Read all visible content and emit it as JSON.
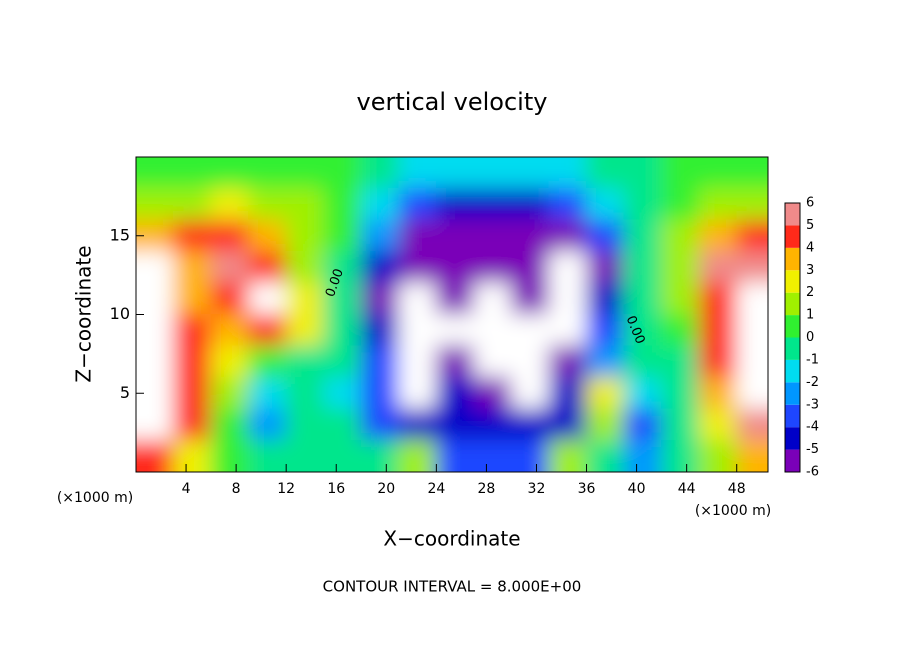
{
  "chart_data": {
    "type": "heatmap",
    "title": "vertical velocity",
    "xlabel": "X−coordinate",
    "ylabel": "Z−coordinate",
    "x_unit": "(×1000 m)",
    "footer": "CONTOUR INTERVAL = 8.000E+00",
    "annotations": [
      "0.00",
      "0.00"
    ],
    "xlim": [
      0,
      50.5
    ],
    "ylim": [
      0,
      20
    ],
    "xticks": [
      4,
      8,
      12,
      16,
      20,
      24,
      28,
      32,
      36,
      40,
      44,
      48
    ],
    "yticks": [
      5,
      10,
      15
    ],
    "x": [
      1.5,
      4.5,
      7.5,
      10.5,
      13.5,
      16.5,
      19.5,
      22.5,
      25.5,
      28.5,
      31.5,
      34.5,
      37.5,
      40.5,
      43.5,
      46.5,
      49.5
    ],
    "y": [
      19,
      17,
      15,
      13,
      11,
      9,
      7,
      5,
      3,
      1
    ],
    "z": [
      [
        1,
        1,
        1,
        1,
        1,
        0.5,
        0,
        -1,
        -1.5,
        -1.5,
        -1,
        -1,
        -0.5,
        0,
        0.5,
        1,
        1
      ],
      [
        2,
        2,
        3,
        2,
        1.5,
        0.5,
        -1,
        -3,
        -4,
        -4.5,
        -4,
        -3,
        -1.5,
        0,
        1,
        2,
        2
      ],
      [
        4,
        5,
        5,
        4,
        2,
        0.5,
        -2,
        -5,
        -5,
        -5,
        -5,
        -5,
        -3,
        0,
        2,
        4,
        5
      ],
      [
        8,
        4,
        6,
        5,
        2,
        0,
        -4,
        -6,
        -6,
        -5,
        -5,
        -8,
        -5,
        0,
        2,
        6,
        6
      ],
      [
        8,
        4,
        5,
        8,
        3,
        0,
        -5,
        -8,
        -6,
        -8,
        -6,
        -8,
        -4,
        -0.5,
        2,
        5,
        8
      ],
      [
        8,
        5,
        4,
        5,
        3,
        0,
        -4,
        -8,
        -7,
        -8,
        -8,
        -8,
        -3,
        0,
        1,
        5,
        8
      ],
      [
        8,
        5,
        3,
        1,
        0,
        -0.5,
        -3,
        -8,
        -5,
        -8,
        -8,
        -5,
        -2,
        0,
        0,
        5,
        8
      ],
      [
        8,
        5,
        2,
        -1,
        0,
        -1,
        -3,
        -8,
        -4,
        -5,
        -8,
        -4,
        3,
        -1,
        0,
        4,
        8
      ],
      [
        8,
        5,
        1,
        -2,
        0,
        0,
        -3,
        -4,
        -4,
        -4,
        -4,
        -4,
        2,
        -3,
        0,
        3,
        6
      ],
      [
        5,
        3,
        1,
        0,
        0,
        0,
        0,
        2,
        -3,
        -3,
        -3,
        2,
        0,
        -2,
        0,
        2,
        4
      ]
    ],
    "levels": [
      -6,
      -5,
      -4,
      -3,
      -2,
      -1,
      0,
      1,
      2,
      3,
      4,
      5,
      6
    ],
    "colors": [
      "#7a00b8",
      "#0000c8",
      "#1e46ff",
      "#0096ff",
      "#00dcf0",
      "#00e68c",
      "#30f030",
      "#a0f000",
      "#f0f000",
      "#ffb400",
      "#ff2a1a",
      "#f08a8a"
    ],
    "out_of_range_color": "#ffffff"
  }
}
